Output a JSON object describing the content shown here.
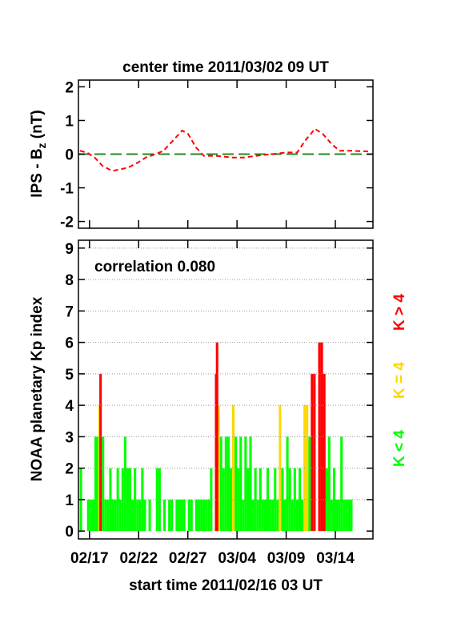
{
  "chart_data": [
    {
      "type": "line",
      "title": "center time 2011/03/02 09 UT",
      "ylabel_parts": [
        "IPS - B",
        "z",
        " (nT)"
      ],
      "xlim": [
        -0.25,
        29.7
      ],
      "xticks": [
        0.875,
        5.875,
        10.875,
        15.875,
        20.875,
        25.875
      ],
      "ylim": [
        -2.2,
        2.2
      ],
      "yticks": [
        -2,
        -1,
        0,
        1,
        2
      ],
      "reference_line": {
        "value": 0,
        "color": "#228b22"
      },
      "series": [
        {
          "color": "#ff0000",
          "x": [
            -0.1,
            0.6,
            1.4,
            2.2,
            3.2,
            4.0,
            4.8,
            5.8,
            6.6,
            7.6,
            8.4,
            9.2,
            10.3,
            10.9,
            11.7,
            12.5,
            13.7,
            15.4,
            16.6,
            17.8,
            19.4,
            20.9,
            22.0,
            22.8,
            23.8,
            24.6,
            25.5,
            26.3,
            27.6,
            29.2
          ],
          "values": [
            0.1,
            0.05,
            -0.1,
            -0.35,
            -0.5,
            -0.45,
            -0.4,
            -0.25,
            -0.1,
            0.0,
            0.1,
            0.35,
            0.7,
            0.6,
            0.2,
            -0.05,
            -0.05,
            -0.1,
            -0.1,
            -0.05,
            0.0,
            0.05,
            0.05,
            0.4,
            0.75,
            0.6,
            0.3,
            0.1,
            0.1,
            0.08
          ]
        }
      ]
    },
    {
      "type": "bar",
      "ylabel": "NOAA planetary Kp index",
      "xlabel": "start time 2011/02/16 03 UT",
      "annotation": "correlation 0.080",
      "grid": true,
      "xlim": [
        -0.25,
        29.7
      ],
      "xticks": [
        {
          "value": 0.875,
          "label": "02/17"
        },
        {
          "value": 5.875,
          "label": "02/22"
        },
        {
          "value": 10.875,
          "label": "02/27"
        },
        {
          "value": 15.875,
          "label": "03/04"
        },
        {
          "value": 20.875,
          "label": "03/09"
        },
        {
          "value": 25.875,
          "label": "03/14"
        }
      ],
      "ylim": [
        -0.25,
        9.25
      ],
      "yticks": [
        0,
        1,
        2,
        3,
        4,
        5,
        6,
        7,
        8,
        9
      ],
      "series": [
        {
          "name": "K < 4",
          "color": "#00ff00",
          "x": [
            0,
            0.75,
            1.0,
            1.25,
            1.5,
            1.75,
            2.25,
            2.5,
            2.75,
            3.0,
            3.25,
            3.5,
            3.75,
            4.0,
            4.25,
            4.5,
            4.75,
            5.0,
            5.25,
            5.5,
            5.75,
            6.0,
            6.25,
            6.5,
            7.0,
            7.75,
            8.0,
            8.5,
            9.0,
            9.25,
            9.75,
            10.0,
            10.25,
            10.5,
            11.0,
            11.25,
            11.75,
            12.0,
            12.25,
            12.5,
            12.75,
            13.0,
            13.25,
            14.25,
            14.5,
            14.75,
            15.0,
            15.25,
            15.75,
            16.0,
            16.25,
            16.5,
            16.75,
            17.0,
            17.25,
            17.5,
            17.75,
            18.0,
            18.25,
            18.5,
            18.75,
            19.0,
            19.25,
            19.5,
            19.75,
            20.0,
            20.5,
            20.75,
            21.0,
            21.25,
            21.5,
            21.75,
            22.0,
            22.25,
            22.5,
            23.0,
            23.25,
            24.75,
            25.0,
            25.25,
            25.5,
            25.75,
            26.0,
            26.25,
            26.5,
            26.75,
            27.0,
            27.25,
            27.5
          ],
          "values": [
            2,
            1,
            1,
            1,
            3,
            3,
            3,
            1,
            1,
            2,
            1,
            1,
            2,
            1,
            2,
            3,
            2,
            2,
            1,
            2,
            1,
            1,
            2,
            1,
            1,
            2,
            2,
            1,
            1,
            1,
            1,
            1,
            1,
            1,
            1,
            1,
            1,
            1,
            1,
            1,
            1,
            1,
            2,
            3,
            2,
            3,
            3,
            2,
            3,
            2,
            3,
            1,
            3,
            2,
            3,
            1,
            2,
            1,
            2,
            1,
            1,
            2,
            1,
            1,
            2,
            1,
            2,
            1,
            3,
            2,
            1,
            2,
            1,
            2,
            1,
            1,
            3,
            3,
            2,
            3,
            1,
            2,
            1,
            1,
            3,
            1,
            1,
            1,
            1
          ]
        },
        {
          "name": "K = 4",
          "color": "#ffd700",
          "x": [
            1.9,
            14.0,
            15.5,
            20.25,
            22.75,
            23.0
          ],
          "values": [
            4,
            4,
            4,
            4,
            4,
            4
          ]
        },
        {
          "name": "K > 4",
          "color": "#ff0000",
          "x": [
            2.0,
            13.75,
            13.85,
            23.5,
            23.75,
            24.25,
            24.5,
            24.75
          ],
          "values": [
            5,
            5,
            6,
            5,
            5,
            6,
            6,
            5
          ]
        }
      ]
    }
  ]
}
